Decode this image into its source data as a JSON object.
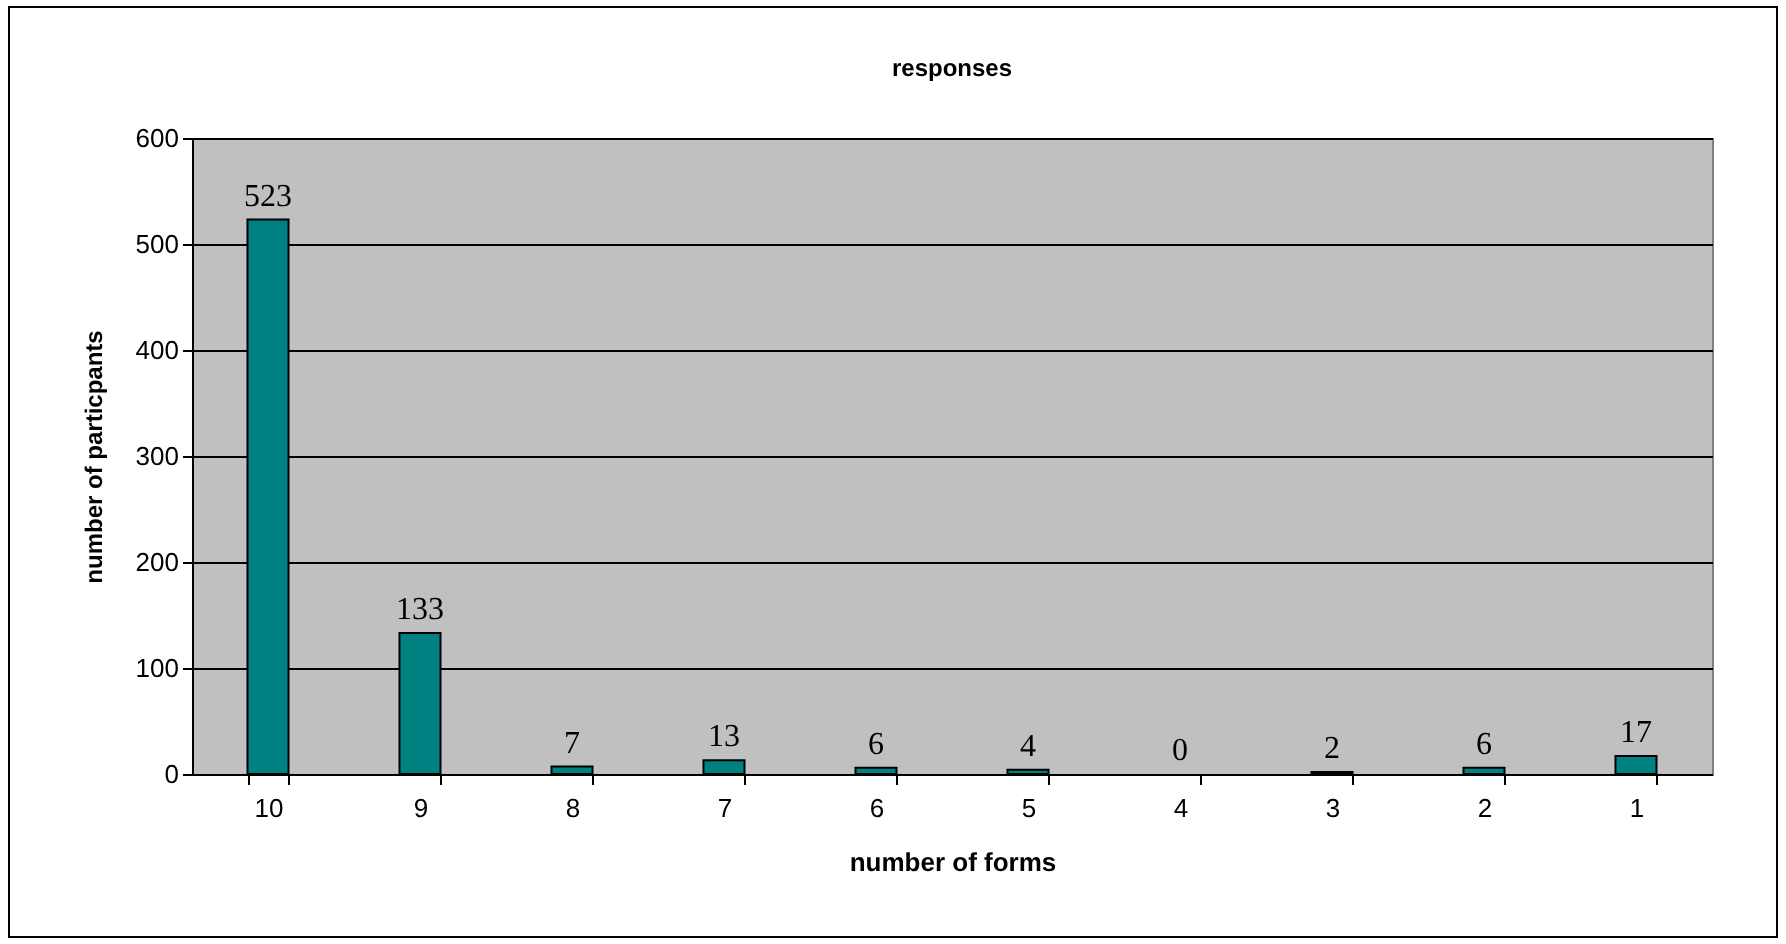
{
  "chart_data": {
    "type": "bar",
    "title": "responses",
    "xlabel": "number of forms",
    "ylabel": "number of particpants",
    "categories": [
      "10",
      "9",
      "8",
      "7",
      "6",
      "5",
      "4",
      "3",
      "2",
      "1"
    ],
    "values": [
      523,
      133,
      7,
      13,
      6,
      4,
      0,
      2,
      6,
      17
    ],
    "color": "#008080",
    "ylim": [
      0,
      600
    ],
    "yticks": [
      0,
      100,
      200,
      300,
      400,
      500,
      600
    ],
    "grid": "y",
    "data_labels": true
  }
}
